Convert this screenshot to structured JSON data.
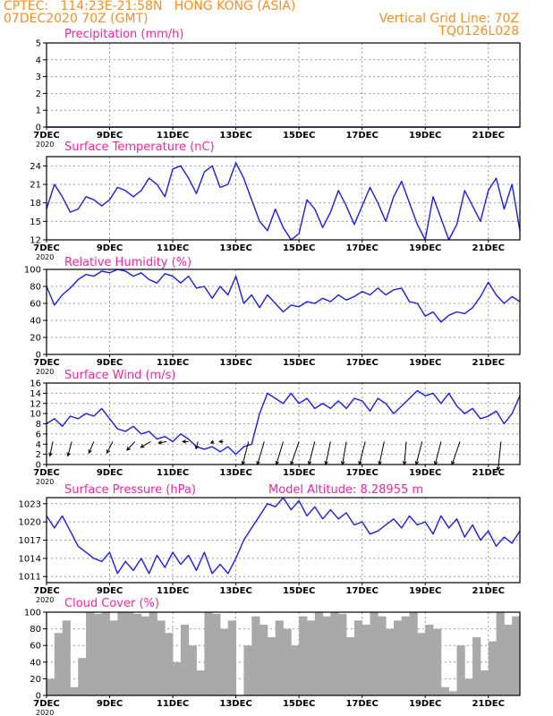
{
  "header": {
    "left_line1": "CPTEC:   114:23E-21:58N   HONG KONG (ASIA)",
    "left_line2": "07DEC2020 70Z (GMT)",
    "right_line1": "Vertical Grid Line: 70Z",
    "right_line2": "TQ0126L028"
  },
  "x_axis": {
    "tick_labels": [
      "7DEC",
      "9DEC",
      "11DEC",
      "13DEC",
      "15DEC",
      "17DEC",
      "19DEC",
      "21DEC"
    ],
    "tick_days": [
      7,
      9,
      11,
      13,
      15,
      17,
      19,
      21
    ],
    "range_days": [
      7,
      22
    ],
    "year_label": "2020"
  },
  "panels": {
    "precip_title": "Precipitation (mm/h)",
    "temp_title": "Surface Temperature (nC)",
    "rh_title": "Relative Humidity (%)",
    "wind_title": "Surface Wind (m/s)",
    "pres_title": "Surface Pressure (hPa)",
    "altitude_label": "Model Altitude: 8.28955 m",
    "cloud_title": "Cloud Cover (%)"
  },
  "colors": {
    "header": "#ff8c1a",
    "panel_title": "#ff1fa0",
    "line": "#1a1aff",
    "cloud_bars": "#a9a9a9",
    "grid": "#999999"
  },
  "chart_data": [
    {
      "type": "line",
      "title": "Precipitation (mm/h)",
      "ylim": [
        0,
        5
      ],
      "yticks": [
        0,
        1,
        2,
        3,
        4,
        5
      ],
      "x": [
        7,
        22
      ],
      "series": [
        {
          "values": [
            0,
            0
          ]
        }
      ]
    },
    {
      "type": "line",
      "title": "Surface Temperature (nC)",
      "ylim": [
        12,
        25.5
      ],
      "yticks": [
        12,
        15,
        18,
        21,
        24
      ],
      "x": [
        7,
        7.25,
        7.5,
        7.75,
        8,
        8.25,
        8.5,
        8.75,
        9,
        9.25,
        9.5,
        9.75,
        10,
        10.25,
        10.5,
        10.75,
        11,
        11.25,
        11.5,
        11.75,
        12,
        12.25,
        12.5,
        12.75,
        13,
        13.25,
        13.5,
        13.75,
        14,
        14.25,
        14.5,
        14.75,
        15,
        15.25,
        15.5,
        15.75,
        16,
        16.25,
        16.5,
        16.75,
        17,
        17.25,
        17.5,
        17.75,
        18,
        18.25,
        18.5,
        18.75,
        19,
        19.25,
        19.5,
        19.75,
        20,
        20.25,
        20.5,
        20.75,
        21,
        21.25,
        21.5,
        21.75,
        22
      ],
      "series": [
        {
          "values": [
            17,
            21,
            19,
            16.5,
            17,
            19,
            18.5,
            17.5,
            18.5,
            20.5,
            20,
            19,
            20,
            22,
            21,
            19,
            23.5,
            24,
            22,
            19.5,
            23,
            24,
            20.5,
            21,
            24.5,
            22,
            18.5,
            15,
            13.5,
            17,
            14,
            12,
            13,
            18.5,
            17,
            14,
            16.5,
            20,
            17.5,
            14.5,
            17.5,
            20.5,
            18,
            15,
            19,
            21.5,
            18,
            14.5,
            12,
            19,
            15.5,
            12,
            14.5,
            20,
            17.5,
            15,
            20,
            22,
            17,
            21,
            13.5
          ]
        }
      ]
    },
    {
      "type": "line",
      "title": "Relative Humidity (%)",
      "ylim": [
        0,
        100
      ],
      "yticks": [
        0,
        20,
        40,
        60,
        80,
        100
      ],
      "x": [
        7,
        7.25,
        7.5,
        7.75,
        8,
        8.25,
        8.5,
        8.75,
        9,
        9.25,
        9.5,
        9.75,
        10,
        10.25,
        10.5,
        10.75,
        11,
        11.25,
        11.5,
        11.75,
        12,
        12.25,
        12.5,
        12.75,
        13,
        13.25,
        13.5,
        13.75,
        14,
        14.25,
        14.5,
        14.75,
        15,
        15.25,
        15.5,
        15.75,
        16,
        16.25,
        16.5,
        16.75,
        17,
        17.25,
        17.5,
        17.75,
        18,
        18.25,
        18.5,
        18.75,
        19,
        19.25,
        19.5,
        19.75,
        20,
        20.25,
        20.5,
        20.75,
        21,
        21.25,
        21.5,
        21.75,
        22
      ],
      "series": [
        {
          "values": [
            80,
            58,
            70,
            78,
            88,
            94,
            92,
            98,
            96,
            100,
            98,
            92,
            96,
            88,
            84,
            95,
            92,
            84,
            92,
            78,
            80,
            66,
            80,
            70,
            92,
            60,
            70,
            55,
            70,
            60,
            50,
            58,
            56,
            62,
            60,
            66,
            62,
            70,
            64,
            68,
            74,
            70,
            78,
            70,
            76,
            78,
            62,
            60,
            45,
            50,
            38,
            46,
            50,
            48,
            55,
            68,
            85,
            70,
            60,
            68,
            62
          ]
        }
      ]
    },
    {
      "type": "line",
      "title": "Surface Wind (m/s)",
      "ylim": [
        0,
        16
      ],
      "yticks": [
        0,
        2,
        4,
        6,
        8,
        10,
        12,
        14,
        16
      ],
      "x": [
        7,
        7.25,
        7.5,
        7.75,
        8,
        8.25,
        8.5,
        8.75,
        9,
        9.25,
        9.5,
        9.75,
        10,
        10.25,
        10.5,
        10.75,
        11,
        11.25,
        11.5,
        11.75,
        12,
        12.25,
        12.5,
        12.75,
        13,
        13.25,
        13.5,
        13.75,
        14,
        14.25,
        14.5,
        14.75,
        15,
        15.25,
        15.5,
        15.75,
        16,
        16.25,
        16.5,
        16.75,
        17,
        17.25,
        17.5,
        17.75,
        18,
        18.25,
        18.5,
        18.75,
        19,
        19.25,
        19.5,
        19.75,
        20,
        20.25,
        20.5,
        20.75,
        21,
        21.25,
        21.5,
        21.75,
        22
      ],
      "series": [
        {
          "values": [
            8,
            9,
            7.5,
            9.5,
            9,
            10,
            9.5,
            11,
            9,
            7,
            6.5,
            7.5,
            6,
            6.5,
            5,
            5.5,
            4.5,
            6,
            5,
            3.5,
            3,
            3.5,
            2.5,
            3.5,
            2,
            3.5,
            4,
            10,
            14,
            13,
            12,
            14,
            12,
            13,
            11,
            12,
            11,
            12.5,
            11,
            13,
            12.5,
            10.5,
            13,
            12,
            10,
            11.5,
            13,
            14.5,
            13.5,
            14,
            12,
            14,
            11.5,
            10,
            11,
            9,
            9.5,
            10.5,
            8,
            10,
            13.5
          ]
        }
      ],
      "vectors_u": [
        -1.5,
        -2,
        -2.5,
        -3,
        -4,
        -5,
        -4,
        -3,
        -1,
        -1.5,
        -2,
        -3,
        -3.5,
        -3.5,
        -4,
        -3,
        -2.5,
        -2,
        -3,
        -2.5,
        -1,
        -3,
        -3,
        -4,
        -1.5
      ],
      "vectors_v": [
        -5,
        -5,
        -4,
        -4,
        -3,
        -2,
        -0.5,
        0,
        -2.5,
        -0.5,
        0,
        -8,
        -8,
        -8,
        -8,
        -8,
        -8,
        -8,
        -8,
        -8,
        -8,
        -8,
        -8,
        -8,
        -10
      ],
      "vector_x": [
        7.2,
        7.8,
        8.5,
        9.1,
        9.8,
        10.3,
        10.8,
        11.5,
        11.8,
        12.3,
        12.6,
        13.4,
        13.9,
        14.5,
        15.0,
        15.5,
        16.0,
        16.5,
        17.1,
        17.7,
        18.4,
        18.9,
        19.5,
        20.1,
        21.4
      ]
    },
    {
      "type": "line",
      "title": "Surface Pressure (hPa)",
      "ylim": [
        1010,
        1024
      ],
      "yticks": [
        1011,
        1014,
        1017,
        1020,
        1023
      ],
      "x": [
        7,
        7.25,
        7.5,
        7.75,
        8,
        8.25,
        8.5,
        8.75,
        9,
        9.25,
        9.5,
        9.75,
        10,
        10.25,
        10.5,
        10.75,
        11,
        11.25,
        11.5,
        11.75,
        12,
        12.25,
        12.5,
        12.75,
        13,
        13.25,
        13.5,
        13.75,
        14,
        14.25,
        14.5,
        14.75,
        15,
        15.25,
        15.5,
        15.75,
        16,
        16.25,
        16.5,
        16.75,
        17,
        17.25,
        17.5,
        17.75,
        18,
        18.25,
        18.5,
        18.75,
        19,
        19.25,
        19.5,
        19.75,
        20,
        20.25,
        20.5,
        20.75,
        21,
        21.25,
        21.5,
        21.75,
        22
      ],
      "series": [
        {
          "values": [
            1021,
            1019,
            1021,
            1018.5,
            1016,
            1015,
            1014,
            1013.5,
            1015,
            1011.5,
            1013.5,
            1012,
            1014,
            1011.5,
            1014.5,
            1012.5,
            1015,
            1013,
            1014.5,
            1012,
            1015,
            1011.5,
            1013,
            1011.5,
            1014,
            1017,
            1019,
            1021,
            1023,
            1022.5,
            1024,
            1022,
            1023.5,
            1021,
            1022.5,
            1020.5,
            1022,
            1020.5,
            1021.5,
            1019.5,
            1020,
            1018,
            1018.5,
            1019.5,
            1020.5,
            1019,
            1021,
            1019.5,
            1020,
            1018,
            1021,
            1019,
            1020.5,
            1017.5,
            1019.5,
            1017,
            1018.5,
            1016,
            1017.5,
            1016.5,
            1018.5
          ]
        }
      ]
    },
    {
      "type": "bar",
      "title": "Cloud Cover (%)",
      "ylim": [
        0,
        100
      ],
      "yticks": [
        0,
        20,
        40,
        60,
        80,
        100
      ],
      "x": [
        7,
        7.25,
        7.5,
        7.75,
        8,
        8.25,
        8.5,
        8.75,
        9,
        9.25,
        9.5,
        9.75,
        10,
        10.25,
        10.5,
        10.75,
        11,
        11.25,
        11.5,
        11.75,
        12,
        12.25,
        12.5,
        12.75,
        13,
        13.25,
        13.5,
        13.75,
        14,
        14.25,
        14.5,
        14.75,
        15,
        15.25,
        15.5,
        15.75,
        16,
        16.25,
        16.5,
        16.75,
        17,
        17.25,
        17.5,
        17.75,
        18,
        18.25,
        18.5,
        18.75,
        19,
        19.25,
        19.5,
        19.75,
        20,
        20.25,
        20.5,
        20.75,
        21,
        21.25,
        21.5,
        21.75
      ],
      "values": [
        20,
        75,
        90,
        10,
        45,
        100,
        98,
        100,
        90,
        100,
        100,
        98,
        95,
        100,
        90,
        75,
        40,
        85,
        60,
        30,
        100,
        98,
        80,
        90,
        0,
        60,
        95,
        85,
        70,
        90,
        80,
        60,
        95,
        90,
        100,
        95,
        100,
        98,
        70,
        90,
        85,
        100,
        95,
        80,
        90,
        95,
        100,
        75,
        85,
        80,
        10,
        5,
        60,
        20,
        70,
        30,
        65,
        100,
        85,
        95
      ]
    }
  ]
}
